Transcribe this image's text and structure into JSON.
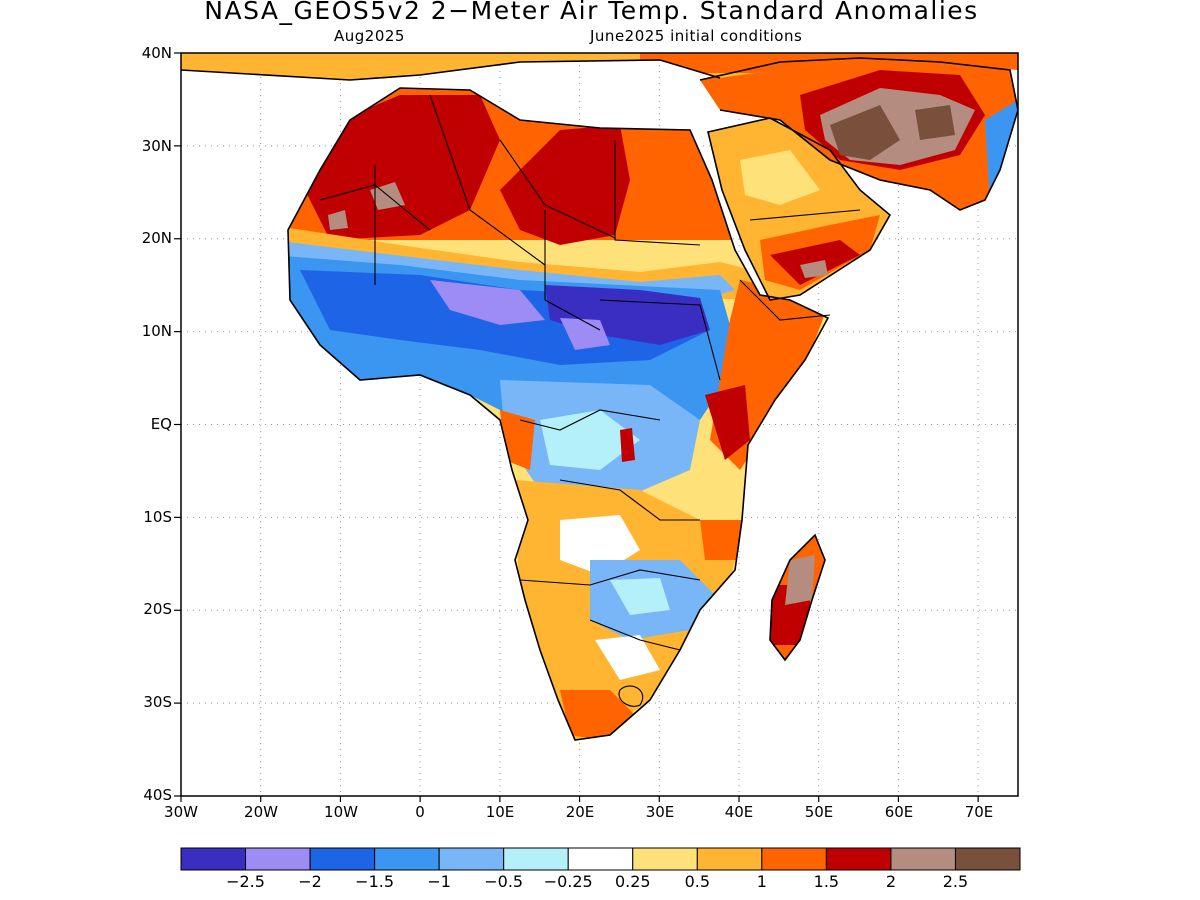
{
  "header": {
    "title": "NASA_GEOS5v2 2−Meter Air Temp. Standard Anomalies",
    "forecast_month": "Aug2025",
    "initial_conditions": "June2025 initial conditions"
  },
  "map": {
    "region": "Africa and Arabian Peninsula",
    "projection": "lat-lon",
    "lon_range": [
      "30W",
      "75E"
    ],
    "lat_range": [
      "40S",
      "40N"
    ],
    "grid_lines": "dotted",
    "y_ticks": [
      "40N",
      "30N",
      "20N",
      "10N",
      "EQ",
      "10S",
      "20S",
      "30S",
      "40S"
    ],
    "x_ticks": [
      "30W",
      "20W",
      "10W",
      "0",
      "10E",
      "20E",
      "30E",
      "40E",
      "50E",
      "60E",
      "70E"
    ]
  },
  "colorbar": {
    "colors": [
      "#3a2ec2",
      "#9d8cf4",
      "#1e64e6",
      "#3a96f0",
      "#78b6f8",
      "#b4f0fa",
      "#ffffff",
      "#ffe17a",
      "#ffb432",
      "#ff6400",
      "#c00000",
      "#b48c80",
      "#78503c"
    ],
    "labels": [
      "−2.5",
      "−2",
      "−1.5",
      "−1",
      "−0.5",
      "−0.25",
      "0.25",
      "0.5",
      "1",
      "1.5",
      "2",
      "2.5"
    ]
  }
}
